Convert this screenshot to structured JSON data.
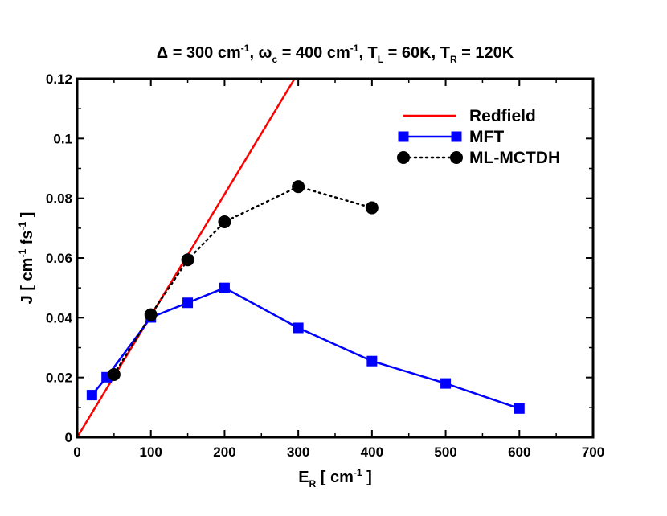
{
  "chart_data": {
    "type": "line",
    "title": {
      "parts": [
        {
          "text": "Δ = 300 cm"
        },
        {
          "text": "-1",
          "sup": true
        },
        {
          "text": ", ω"
        },
        {
          "text": "c",
          "sub": true
        },
        {
          "text": " = 400 cm"
        },
        {
          "text": "-1",
          "sup": true
        },
        {
          "text": ", T"
        },
        {
          "text": "L",
          "sub": true
        },
        {
          "text": " = 60K, T"
        },
        {
          "text": "R",
          "sub": true
        },
        {
          "text": " = 120K"
        }
      ]
    },
    "xlabel": {
      "parts": [
        {
          "text": "E"
        },
        {
          "text": "R",
          "sub": true
        },
        {
          "text": "  [ cm"
        },
        {
          "text": "-1",
          "sup": true
        },
        {
          "text": " ]"
        }
      ]
    },
    "ylabel": {
      "parts": [
        {
          "text": "J [ cm"
        },
        {
          "text": "-1",
          "sup": true
        },
        {
          "text": " fs"
        },
        {
          "text": "-1",
          "sup": true
        },
        {
          "text": " ]"
        }
      ]
    },
    "xlim": [
      0,
      700
    ],
    "ylim": [
      0,
      0.12
    ],
    "xticks": [
      0,
      100,
      200,
      300,
      400,
      500,
      600,
      700
    ],
    "xtick_labels": [
      "0",
      "100",
      "200",
      "300",
      "400",
      "500",
      "600",
      "700"
    ],
    "yticks": [
      0,
      0.02,
      0.04,
      0.06,
      0.08,
      0.1,
      0.12
    ],
    "ytick_labels": [
      "0",
      "0.02",
      "0.04",
      "0.06",
      "0.08",
      "0.1",
      "0.12"
    ],
    "grid": false,
    "legend_position": "top-right",
    "series": [
      {
        "name": "Redfield",
        "color": "#ff0000",
        "line": "solid",
        "marker": "none",
        "x": [
          0,
          295
        ],
        "y": [
          0,
          0.12
        ]
      },
      {
        "name": "MFT",
        "color": "#0000ff",
        "line": "solid",
        "marker": "square",
        "x": [
          20,
          40,
          100,
          150,
          200,
          300,
          400,
          500,
          600
        ],
        "y": [
          0.0141,
          0.0201,
          0.0401,
          0.045,
          0.05,
          0.0366,
          0.0255,
          0.018,
          0.0096
        ]
      },
      {
        "name": "ML-MCTDH",
        "color": "#000000",
        "line": "dotted",
        "marker": "circle",
        "x": [
          50,
          100,
          150,
          200,
          300,
          400
        ],
        "y": [
          0.021,
          0.041,
          0.0594,
          0.0721,
          0.0839,
          0.0768
        ]
      }
    ]
  }
}
